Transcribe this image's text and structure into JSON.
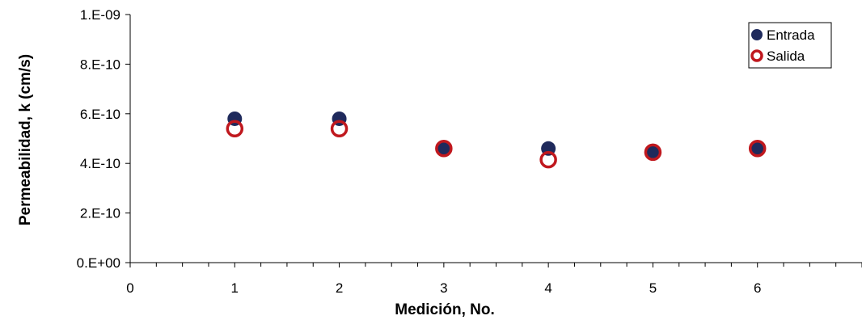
{
  "chart_data": {
    "type": "scatter",
    "title": "",
    "xlabel": "Medición, No.",
    "ylabel": "Permeabilidad, k (cm/s)",
    "xlim": [
      0,
      7
    ],
    "ylim": [
      0,
      1e-09
    ],
    "x_ticks": [
      0,
      1,
      2,
      3,
      4,
      5,
      6
    ],
    "x_tick_labels": [
      "0",
      "1",
      "2",
      "3",
      "4",
      "5",
      "6"
    ],
    "y_ticks": [
      0,
      2e-10,
      4e-10,
      6e-10,
      8e-10,
      1e-09
    ],
    "y_tick_labels": [
      "0.E+00",
      "2.E-10",
      "4.E-10",
      "6.E-10",
      "8.E-10",
      "1.E-09"
    ],
    "grid": false,
    "legend_position": "top-right",
    "series": [
      {
        "name": "Entrada",
        "marker": "filled-circle",
        "color": "#1f2a5c",
        "x": [
          1,
          2,
          3,
          4,
          5,
          6
        ],
        "y": [
          5.8e-10,
          5.8e-10,
          4.6e-10,
          4.6e-10,
          4.5e-10,
          4.6e-10
        ]
      },
      {
        "name": "Salida",
        "marker": "open-circle",
        "color": "#c0181e",
        "x": [
          1,
          2,
          3,
          4,
          5,
          6
        ],
        "y": [
          5.4e-10,
          5.4e-10,
          4.6e-10,
          4.15e-10,
          4.45e-10,
          4.6e-10
        ]
      }
    ]
  }
}
